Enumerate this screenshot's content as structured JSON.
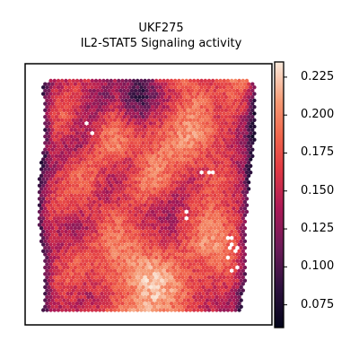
{
  "chart_data": {
    "type": "heatmap",
    "title": "UKF275",
    "subtitle": "IL2-STAT5 Signaling activity",
    "xlabel": "",
    "ylabel": "",
    "grid": false,
    "colormap": "rocket",
    "colorbar": {
      "range": [
        0.06,
        0.235
      ],
      "ticks": [
        0.075,
        0.1,
        0.125,
        0.15,
        0.175,
        0.2,
        0.225
      ],
      "tick_labels": [
        "0.075",
        "0.100",
        "0.125",
        "0.150",
        "0.175",
        "0.200",
        "0.225"
      ]
    },
    "activity_grid": {
      "description_rows": "rows top to bottom, columns left to right, spatial spot activity values",
      "values": [
        [
          0.12,
          0.13,
          0.15,
          0.16,
          0.15,
          0.14,
          0.13,
          0.12,
          0.1,
          0.14,
          0.16,
          0.18,
          0.17,
          0.16,
          0.17,
          0.19,
          0.18,
          0.15
        ],
        [
          0.13,
          0.15,
          0.17,
          0.16,
          0.13,
          0.12,
          0.14,
          0.1,
          0.09,
          0.12,
          0.15,
          0.17,
          0.19,
          0.18,
          0.17,
          0.18,
          0.16,
          0.12
        ],
        [
          0.14,
          0.17,
          0.18,
          0.15,
          0.13,
          0.15,
          0.17,
          0.13,
          0.12,
          0.15,
          0.16,
          0.19,
          0.2,
          0.18,
          0.16,
          0.17,
          0.14,
          0.1
        ],
        [
          0.12,
          0.16,
          0.17,
          0.14,
          0.15,
          0.18,
          0.19,
          0.17,
          0.16,
          0.17,
          0.18,
          0.2,
          0.21,
          0.19,
          0.17,
          0.15,
          0.12,
          0.09
        ],
        [
          0.13,
          0.15,
          0.14,
          0.13,
          0.16,
          0.19,
          0.2,
          0.18,
          0.17,
          0.18,
          0.2,
          0.21,
          0.19,
          0.18,
          0.16,
          0.15,
          0.13,
          0.1
        ],
        [
          0.11,
          0.13,
          0.15,
          0.17,
          0.18,
          0.17,
          0.16,
          0.15,
          0.18,
          0.2,
          0.19,
          0.18,
          0.17,
          0.16,
          0.17,
          0.15,
          0.12,
          0.11
        ],
        [
          0.12,
          0.15,
          0.17,
          0.19,
          0.18,
          0.15,
          0.14,
          0.16,
          0.19,
          0.2,
          0.18,
          0.16,
          0.15,
          0.17,
          0.18,
          0.16,
          0.13,
          0.12
        ],
        [
          0.13,
          0.16,
          0.18,
          0.17,
          0.16,
          0.14,
          0.15,
          0.17,
          0.18,
          0.17,
          0.15,
          0.14,
          0.16,
          0.18,
          0.17,
          0.15,
          0.14,
          0.13
        ],
        [
          0.14,
          0.17,
          0.16,
          0.15,
          0.16,
          0.17,
          0.18,
          0.16,
          0.15,
          0.14,
          0.13,
          0.15,
          0.17,
          0.19,
          0.18,
          0.16,
          0.15,
          0.14
        ],
        [
          0.13,
          0.15,
          0.14,
          0.13,
          0.15,
          0.18,
          0.19,
          0.18,
          0.16,
          0.15,
          0.14,
          0.16,
          0.18,
          0.2,
          0.19,
          0.17,
          0.16,
          0.15
        ],
        [
          0.12,
          0.14,
          0.15,
          0.16,
          0.17,
          0.19,
          0.2,
          0.19,
          0.18,
          0.17,
          0.16,
          0.17,
          0.19,
          0.21,
          0.2,
          0.18,
          0.16,
          0.15
        ],
        [
          0.13,
          0.15,
          0.17,
          0.18,
          0.17,
          0.18,
          0.19,
          0.2,
          0.21,
          0.2,
          0.19,
          0.18,
          0.17,
          0.18,
          0.19,
          0.17,
          0.15,
          0.14
        ],
        [
          0.14,
          0.16,
          0.18,
          0.17,
          0.16,
          0.17,
          0.18,
          0.2,
          0.22,
          0.23,
          0.21,
          0.19,
          0.17,
          0.16,
          0.17,
          0.16,
          0.14,
          0.13
        ],
        [
          0.13,
          0.15,
          0.16,
          0.15,
          0.14,
          0.16,
          0.17,
          0.19,
          0.21,
          0.22,
          0.21,
          0.19,
          0.16,
          0.15,
          0.15,
          0.14,
          0.12,
          0.11
        ],
        [
          0.12,
          0.13,
          0.15,
          0.14,
          0.15,
          0.17,
          0.19,
          0.2,
          0.21,
          0.2,
          0.19,
          0.18,
          0.16,
          0.15,
          0.14,
          0.13,
          0.12,
          0.1
        ]
      ],
      "masked_spots": [
        [
          3,
          4
        ],
        [
          6,
          13
        ],
        [
          7,
          2
        ],
        [
          8,
          11
        ],
        [
          10,
          15
        ],
        [
          11,
          14
        ],
        [
          11,
          15
        ],
        [
          13,
          16
        ]
      ]
    }
  }
}
